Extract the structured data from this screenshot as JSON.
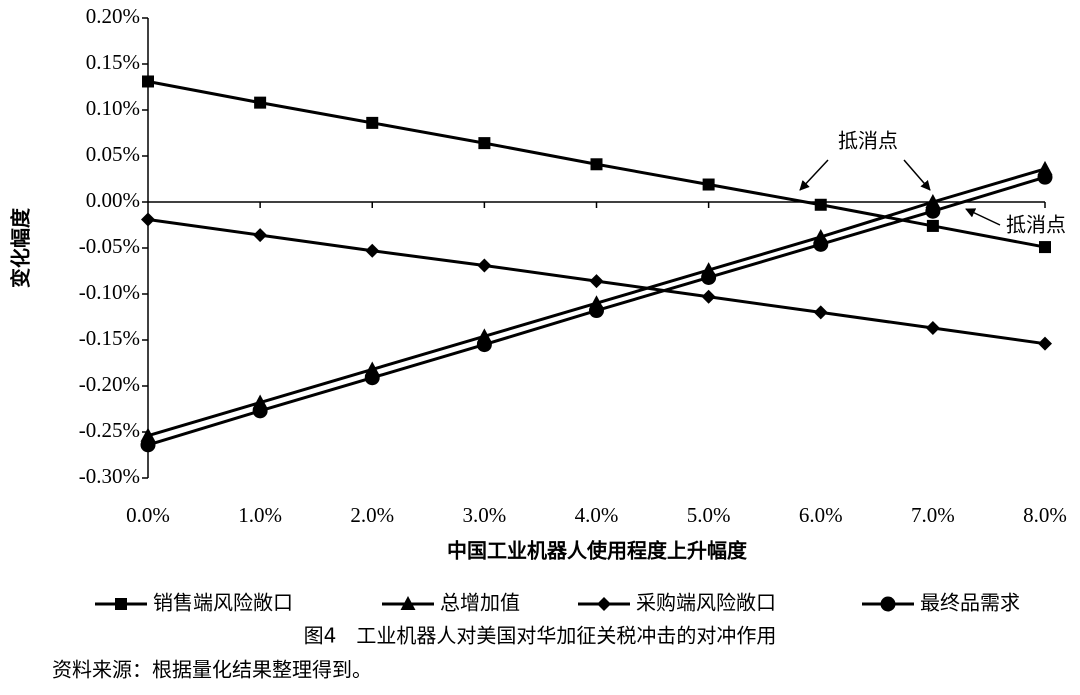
{
  "chart_data": {
    "type": "line",
    "y_label": "变化幅度",
    "x_label": "中国工业机器人使用程度上升幅度",
    "categories": [
      "0.0%",
      "1.0%",
      "2.0%",
      "3.0%",
      "4.0%",
      "5.0%",
      "6.0%",
      "7.0%",
      "8.0%"
    ],
    "series": [
      {
        "name": "销售端风险敞口",
        "color": "#000000",
        "marker": "square",
        "values": [
          0.131,
          0.108,
          0.086,
          0.064,
          0.041,
          0.019,
          -0.003,
          -0.026,
          -0.049
        ]
      },
      {
        "name": "总增加值",
        "color": "#000000",
        "marker": "triangle",
        "values": [
          -0.254,
          -0.218,
          -0.182,
          -0.146,
          -0.11,
          -0.074,
          -0.038,
          0.0,
          0.036
        ]
      },
      {
        "name": "采购端风险敞口",
        "color": "#000000",
        "marker": "diamond",
        "values": [
          -0.019,
          -0.036,
          -0.053,
          -0.069,
          -0.086,
          -0.103,
          -0.12,
          -0.137,
          -0.154
        ]
      },
      {
        "name": "最终品需求",
        "color": "#000000",
        "marker": "circle",
        "values": [
          -0.264,
          -0.227,
          -0.191,
          -0.155,
          -0.118,
          -0.082,
          -0.046,
          -0.01,
          0.027
        ]
      }
    ],
    "ylim": [
      -0.3,
      0.2
    ],
    "yticks": [
      {
        "value": 0.2,
        "label": "0.20%"
      },
      {
        "value": 0.15,
        "label": "0.15%"
      },
      {
        "value": 0.1,
        "label": "0.10%"
      },
      {
        "value": 0.05,
        "label": "0.05%"
      },
      {
        "value": 0,
        "label": "0.00%"
      },
      {
        "value": -0.05,
        "label": "-0.05%"
      },
      {
        "value": -0.1,
        "label": "-0.10%"
      },
      {
        "value": -0.15,
        "label": "-0.15%"
      },
      {
        "value": -0.2,
        "label": "-0.20%"
      },
      {
        "value": -0.25,
        "label": "-0.25%"
      },
      {
        "value": -0.3,
        "label": "-0.30%"
      }
    ],
    "annotations": [
      "抵消点",
      "抵消点"
    ]
  },
  "caption": "图4　工业机器人对美国对华加征关税冲击的对冲作用",
  "source": "资料来源：根据量化结果整理得到。"
}
